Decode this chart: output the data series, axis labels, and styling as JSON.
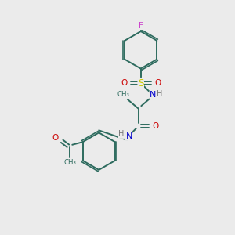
{
  "background_color": "#ebebeb",
  "bond_color": "#2d6b5e",
  "atom_colors": {
    "F": "#cc44cc",
    "S": "#cccc00",
    "O": "#cc0000",
    "N": "#0000cc",
    "H": "#777777",
    "C": "#2d6b5e"
  },
  "figsize": [
    3.0,
    3.0
  ],
  "dpi": 100
}
